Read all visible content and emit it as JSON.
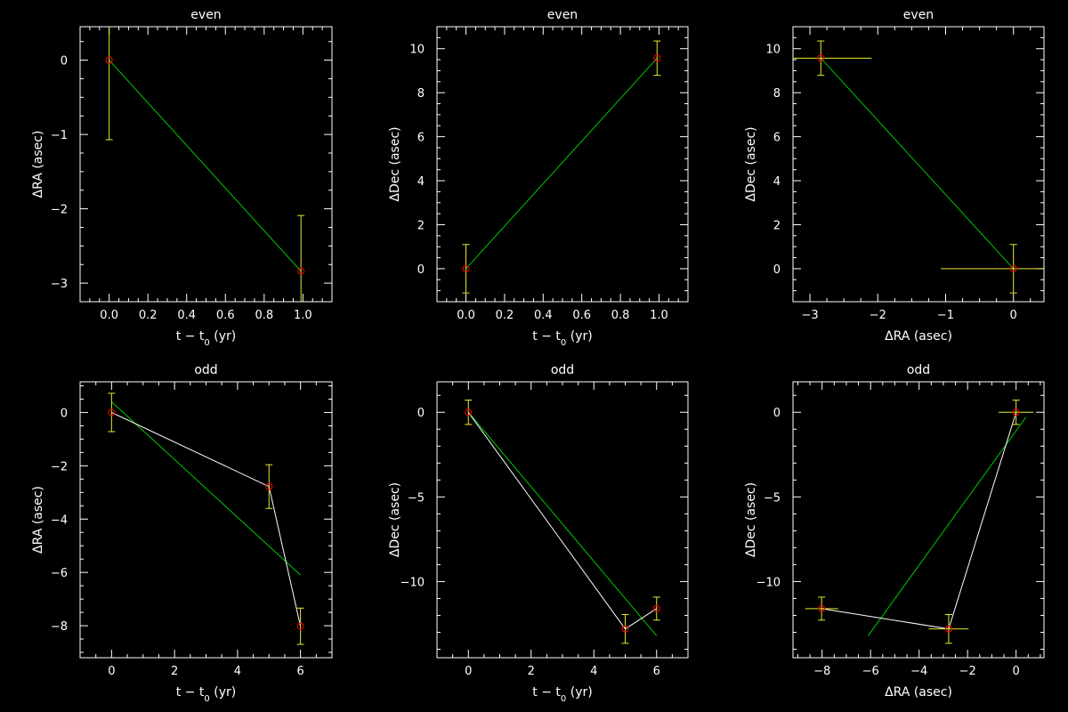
{
  "colors": {
    "background": "#000000",
    "axes": "#ffffff",
    "fit_line": "#00c800",
    "connect_line": "#ffffff",
    "error_bar": "#e8e832",
    "marker": "#e00000"
  },
  "chart_data": [
    {
      "type": "scatter",
      "title": "even",
      "xlabel": "t − t",
      "xlabel_sub": "0",
      "xlabel_unit": " (yr)",
      "ylabel": "ΔRA (asec)",
      "xlim": [
        -0.15,
        1.15
      ],
      "ylim": [
        -3.25,
        0.45
      ],
      "xticks": [
        0.0,
        0.2,
        0.4,
        0.6,
        0.8,
        1.0
      ],
      "xtick_labels": [
        "0.0",
        "0.2",
        "0.4",
        "0.6",
        "0.8",
        "1.0"
      ],
      "yticks": [
        -3,
        -2,
        -1,
        0
      ],
      "ytick_labels": [
        "−3",
        "−2",
        "−1",
        "0"
      ],
      "points": [
        {
          "x": 0.0,
          "y": 0.0,
          "yerr": 1.07
        },
        {
          "x": 0.99,
          "y": -2.84,
          "yerr": 0.75
        }
      ],
      "fit_line": [
        [
          0.0,
          0.0
        ],
        [
          0.99,
          -2.84
        ]
      ],
      "connect": false
    },
    {
      "type": "scatter",
      "title": "even",
      "xlabel": "t − t",
      "xlabel_sub": "0",
      "xlabel_unit": " (yr)",
      "ylabel": "ΔDec (asec)",
      "xlim": [
        -0.15,
        1.15
      ],
      "ylim": [
        -1.5,
        11.0
      ],
      "xticks": [
        0.0,
        0.2,
        0.4,
        0.6,
        0.8,
        1.0
      ],
      "xtick_labels": [
        "0.0",
        "0.2",
        "0.4",
        "0.6",
        "0.8",
        "1.0"
      ],
      "yticks": [
        0,
        2,
        4,
        6,
        8,
        10
      ],
      "ytick_labels": [
        "0",
        "2",
        "4",
        "6",
        "8",
        "10"
      ],
      "points": [
        {
          "x": 0.0,
          "y": 0.0,
          "yerr": 1.1
        },
        {
          "x": 0.99,
          "y": 9.57,
          "yerr": 0.78
        }
      ],
      "fit_line": [
        [
          0.0,
          0.0
        ],
        [
          0.99,
          9.57
        ]
      ],
      "connect": false
    },
    {
      "type": "scatter",
      "title": "even",
      "xlabel": "ΔRA (asec)",
      "ylabel": "ΔDec (asec)",
      "xlim": [
        -3.25,
        0.45
      ],
      "ylim": [
        -1.5,
        11.0
      ],
      "xticks": [
        -3,
        -2,
        -1,
        0
      ],
      "xtick_labels": [
        "−3",
        "−2",
        "−1",
        "0"
      ],
      "yticks": [
        0,
        2,
        4,
        6,
        8,
        10
      ],
      "ytick_labels": [
        "0",
        "2",
        "4",
        "6",
        "8",
        "10"
      ],
      "points": [
        {
          "x": -2.84,
          "y": 9.57,
          "xerr": 0.75,
          "yerr": 0.78
        },
        {
          "x": 0.0,
          "y": 0.0,
          "xerr": 1.07,
          "yerr": 1.1
        }
      ],
      "fit_line": [
        [
          -2.84,
          9.57
        ],
        [
          0.0,
          0.0
        ]
      ],
      "connect": false
    },
    {
      "type": "scatter",
      "title": "odd",
      "xlabel": "t − t",
      "xlabel_sub": "0",
      "xlabel_unit": " (yr)",
      "ylabel": "ΔRA (asec)",
      "xlim": [
        -1.0,
        7.0
      ],
      "ylim": [
        -9.2,
        1.15
      ],
      "xticks": [
        0,
        2,
        4,
        6
      ],
      "xtick_labels": [
        "0",
        "2",
        "4",
        "6"
      ],
      "yticks": [
        -8,
        -6,
        -4,
        -2,
        0
      ],
      "ytick_labels": [
        "−8",
        "−6",
        "−4",
        "−2",
        "0"
      ],
      "points": [
        {
          "x": 0,
          "y": 0.0,
          "yerr": 0.72
        },
        {
          "x": 5,
          "y": -2.78,
          "yerr": 0.82
        },
        {
          "x": 6,
          "y": -8.02,
          "yerr": 0.68
        }
      ],
      "fit_line": [
        [
          0,
          0.4
        ],
        [
          6,
          -6.1
        ]
      ],
      "connect": true
    },
    {
      "type": "scatter",
      "title": "odd",
      "xlabel": "t − t",
      "xlabel_sub": "0",
      "xlabel_unit": " (yr)",
      "ylabel": "ΔDec (asec)",
      "xlim": [
        -1.0,
        7.0
      ],
      "ylim": [
        -14.5,
        1.8
      ],
      "xticks": [
        0,
        2,
        4,
        6
      ],
      "xtick_labels": [
        "0",
        "2",
        "4",
        "6"
      ],
      "yticks": [
        -10,
        -5,
        0
      ],
      "ytick_labels": [
        "−10",
        "−5",
        "0"
      ],
      "points": [
        {
          "x": 0,
          "y": 0.0,
          "yerr": 0.72
        },
        {
          "x": 5,
          "y": -12.8,
          "yerr": 0.85
        },
        {
          "x": 6,
          "y": -11.6,
          "yerr": 0.68
        }
      ],
      "fit_line": [
        [
          0,
          0.0
        ],
        [
          6,
          -13.2
        ]
      ],
      "connect": true
    },
    {
      "type": "scatter",
      "title": "odd",
      "xlabel": "ΔRA (asec)",
      "ylabel": "ΔDec (asec)",
      "xlim": [
        -9.2,
        1.15
      ],
      "ylim": [
        -14.5,
        1.8
      ],
      "xticks": [
        -8,
        -6,
        -4,
        -2,
        0
      ],
      "xtick_labels": [
        "−8",
        "−6",
        "−4",
        "−2",
        "0"
      ],
      "yticks": [
        -10,
        -5,
        0
      ],
      "ytick_labels": [
        "−10",
        "−5",
        "0"
      ],
      "points": [
        {
          "x": 0.0,
          "y": 0.0,
          "xerr": 0.72,
          "yerr": 0.72
        },
        {
          "x": -2.78,
          "y": -12.8,
          "xerr": 0.82,
          "yerr": 0.85
        },
        {
          "x": -8.02,
          "y": -11.6,
          "xerr": 0.68,
          "yerr": 0.68
        }
      ],
      "fit_line": [
        [
          -6.1,
          -13.2
        ],
        [
          0.4,
          -0.3
        ]
      ],
      "connect": true
    }
  ]
}
